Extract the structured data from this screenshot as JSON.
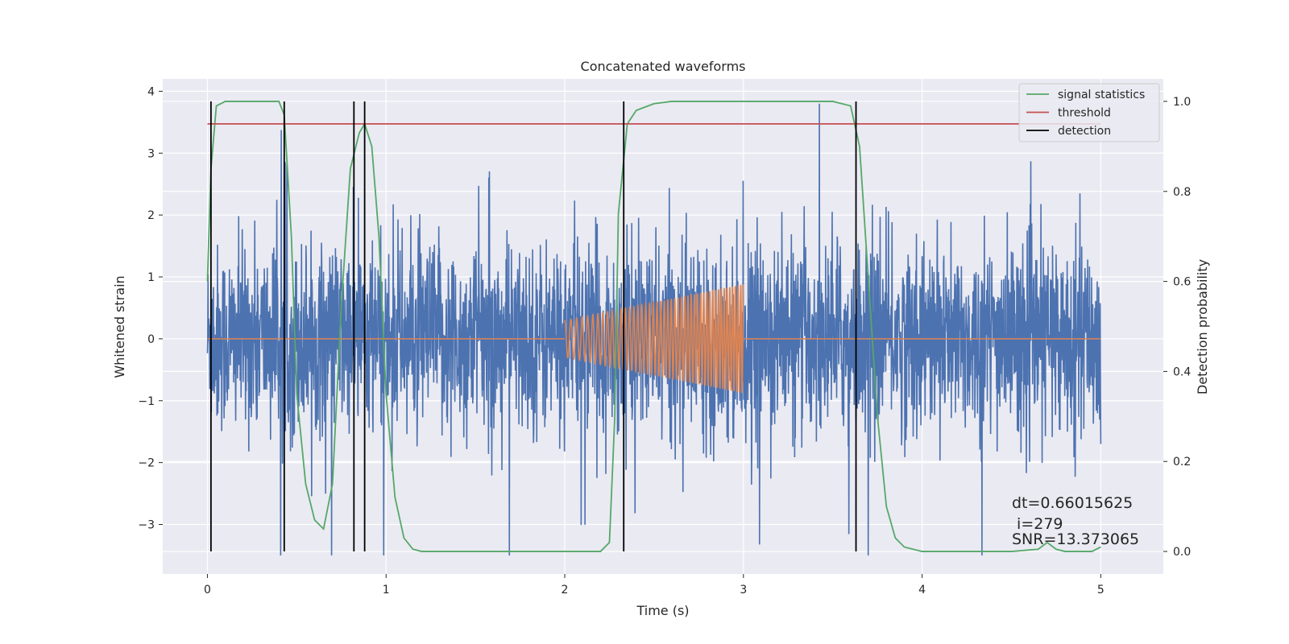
{
  "chart_data": {
    "type": "line",
    "title": "Concatenated waveforms",
    "xlabel": "Time (s)",
    "ylabel": "Whitened strain",
    "y2label": "Detection probability",
    "xlim": [
      -0.25,
      5.35
    ],
    "ylim": [
      -3.8,
      4.2
    ],
    "y2lim": [
      -0.05,
      1.05
    ],
    "xticks": [
      0,
      1,
      2,
      3,
      4,
      5
    ],
    "yticks": [
      -3,
      -2,
      -1,
      0,
      1,
      2,
      3,
      4
    ],
    "y2ticks": [
      0.0,
      0.2,
      0.4,
      0.6,
      0.8,
      1.0
    ],
    "xtick_labels": [
      "0",
      "1",
      "2",
      "3",
      "4",
      "5"
    ],
    "ytick_labels": [
      "−3",
      "−2",
      "−1",
      "0",
      "1",
      "2",
      "3",
      "4"
    ],
    "y2tick_labels": [
      "0.0",
      "0.2",
      "0.4",
      "0.6",
      "0.8",
      "1.0"
    ],
    "grid": true,
    "legend_position": "top-right",
    "noise": {
      "x_range": [
        0,
        5
      ],
      "typical_abs_max": 1.2,
      "spike_max": 3.8,
      "spike_min": -3.5,
      "color": "#4c72b0"
    },
    "injections": [
      {
        "t_start": 2.0,
        "t_end": 3.0,
        "amplitude_start": 0.3,
        "amplitude_end": 0.88,
        "cycles": 48,
        "color": "#dd8452"
      }
    ],
    "series": [
      {
        "name": "signal statistics",
        "axis": "right",
        "color": "#55a868",
        "x": [
          0.0,
          0.02,
          0.05,
          0.1,
          0.2,
          0.4,
          0.43,
          0.47,
          0.5,
          0.55,
          0.6,
          0.65,
          0.7,
          0.75,
          0.8,
          0.85,
          0.88,
          0.92,
          0.96,
          1.0,
          1.05,
          1.1,
          1.15,
          1.2,
          1.5,
          2.0,
          2.2,
          2.25,
          2.28,
          2.3,
          2.35,
          2.4,
          2.5,
          2.6,
          3.0,
          3.5,
          3.6,
          3.65,
          3.7,
          3.75,
          3.8,
          3.85,
          3.9,
          4.0,
          4.5,
          4.65,
          4.7,
          4.75,
          4.8,
          4.95,
          5.0
        ],
        "values": [
          0.6,
          0.85,
          0.99,
          1.0,
          1.0,
          1.0,
          0.97,
          0.7,
          0.35,
          0.15,
          0.07,
          0.05,
          0.15,
          0.55,
          0.85,
          0.93,
          0.95,
          0.9,
          0.7,
          0.35,
          0.12,
          0.03,
          0.005,
          0.0,
          0.0,
          0.0,
          0.0,
          0.02,
          0.3,
          0.75,
          0.95,
          0.98,
          0.995,
          1.0,
          1.0,
          1.0,
          0.99,
          0.9,
          0.6,
          0.3,
          0.1,
          0.03,
          0.01,
          0.0,
          0.0,
          0.005,
          0.02,
          0.005,
          0.0,
          0.0,
          0.01
        ]
      },
      {
        "name": "threshold",
        "axis": "right",
        "color": "#c44e52",
        "x": [
          0,
          5
        ],
        "values": [
          0.95,
          0.95
        ]
      },
      {
        "name": "detection",
        "axis": "right",
        "color": "#000000",
        "vlines": [
          0.02,
          0.43,
          0.82,
          0.88,
          2.33,
          3.63
        ],
        "ymin": 0.0,
        "ymax": 1.0
      }
    ],
    "annotations": [
      "dt=0.66015625",
      " i=279",
      "SNR=13.373065"
    ]
  }
}
